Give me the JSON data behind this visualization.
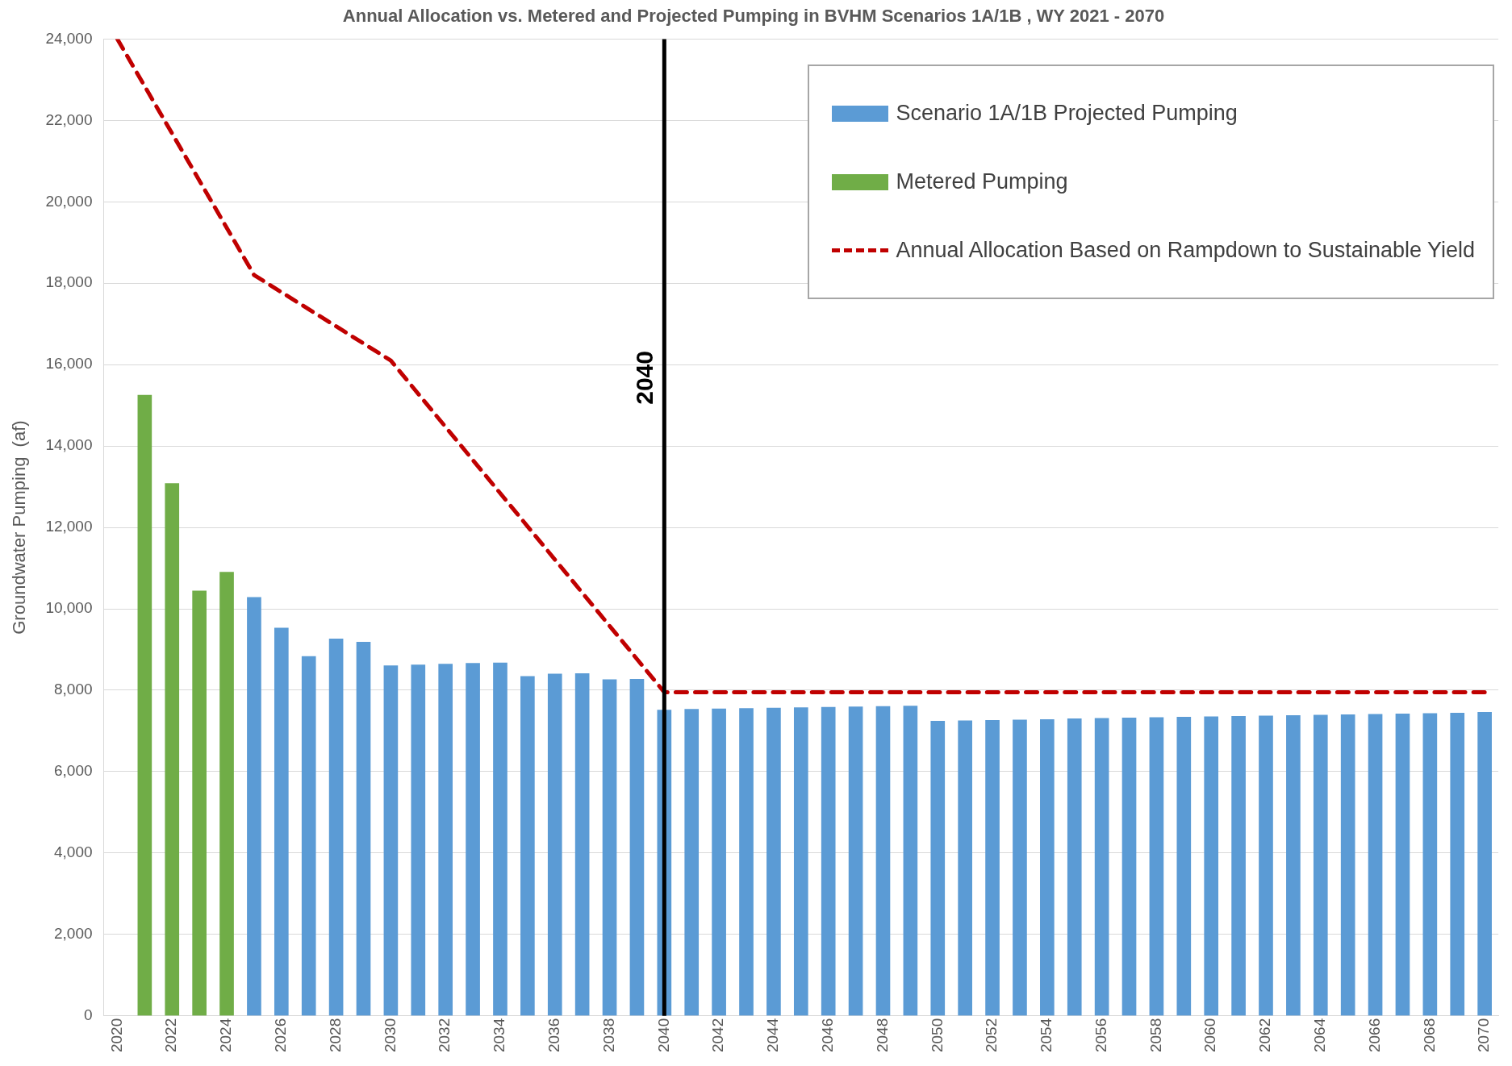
{
  "chart_data": {
    "type": "bar",
    "title": "Annual Allocation vs. Metered and Projected Pumping in BVHM Scenarios 1A/1B , WY 2021 - 2070",
    "ylabel": "Groundwater Pumping  (af)",
    "xlim": [
      2019.5,
      2070.5
    ],
    "xticks": [
      2020,
      2022,
      2024,
      2026,
      2028,
      2030,
      2032,
      2034,
      2036,
      2038,
      2040,
      2042,
      2044,
      2046,
      2048,
      2050,
      2052,
      2054,
      2056,
      2058,
      2060,
      2062,
      2064,
      2066,
      2068,
      2070
    ],
    "ylim": [
      0,
      24000
    ],
    "yticks": [
      {
        "value": 0,
        "label": "0"
      },
      {
        "value": 2000,
        "label": "2,000"
      },
      {
        "value": 4000,
        "label": "4,000"
      },
      {
        "value": 6000,
        "label": "6,000"
      },
      {
        "value": 8000,
        "label": "8,000"
      },
      {
        "value": 10000,
        "label": "10,000"
      },
      {
        "value": 12000,
        "label": "12,000"
      },
      {
        "value": 14000,
        "label": "14,000"
      },
      {
        "value": 16000,
        "label": "16,000"
      },
      {
        "value": 18000,
        "label": "18,000"
      },
      {
        "value": 20000,
        "label": "20,000"
      },
      {
        "value": 22000,
        "label": "22,000"
      },
      {
        "value": 24000,
        "label": "24,000"
      }
    ],
    "grid": "y",
    "legend": "top right",
    "series": [
      {
        "name": "Scenario 1A/1B Projected Pumping",
        "color": "#5b9bd5",
        "x": [
          2025,
          2026,
          2027,
          2028,
          2029,
          2030,
          2031,
          2032,
          2033,
          2034,
          2035,
          2036,
          2037,
          2038,
          2039,
          2040,
          2041,
          2042,
          2043,
          2044,
          2045,
          2046,
          2047,
          2048,
          2049,
          2050,
          2051,
          2052,
          2053,
          2054,
          2055,
          2056,
          2057,
          2058,
          2059,
          2060,
          2061,
          2062,
          2063,
          2064,
          2065,
          2066,
          2067,
          2068,
          2069,
          2070
        ],
        "values": [
          10280,
          9530,
          8830,
          9260,
          9180,
          8600,
          8620,
          8640,
          8660,
          8670,
          8340,
          8400,
          8410,
          8260,
          8270,
          7510,
          7530,
          7540,
          7550,
          7560,
          7570,
          7580,
          7590,
          7600,
          7610,
          7240,
          7250,
          7260,
          7270,
          7280,
          7300,
          7310,
          7320,
          7330,
          7340,
          7350,
          7360,
          7370,
          7380,
          7390,
          7400,
          7410,
          7420,
          7430,
          7440,
          7460
        ]
      },
      {
        "name": "Metered Pumping",
        "color": "#70ad47",
        "x": [
          2021,
          2022,
          2023,
          2024
        ],
        "values": [
          15250,
          13080,
          10440,
          10900
        ]
      },
      {
        "name": "Annual Allocation Based on Rampdown to Sustainable Yield",
        "type": "line",
        "line_style": "dashed",
        "color": "#c00000",
        "x": [
          2020,
          2025,
          2030,
          2040,
          2070
        ],
        "values": [
          24000,
          18200,
          16100,
          7950,
          7950
        ]
      }
    ],
    "ref_lines": [
      {
        "axis": "x",
        "value": 2040,
        "label": "2040",
        "color": "#000000"
      }
    ]
  }
}
